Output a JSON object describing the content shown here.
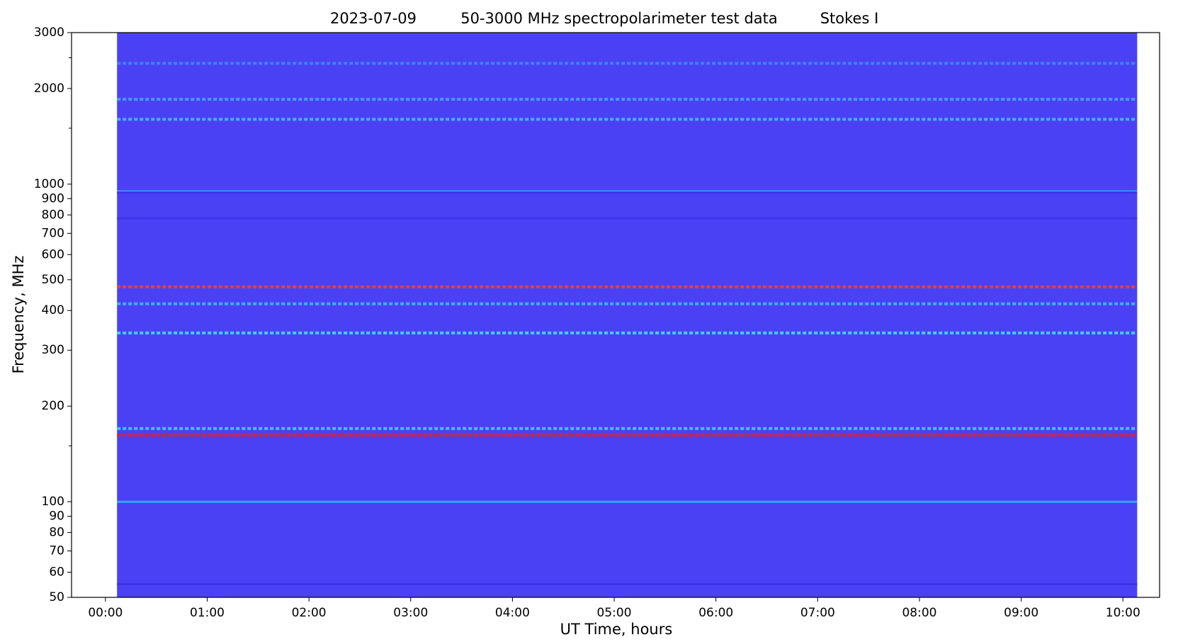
{
  "chart_data": {
    "type": "spectrogram",
    "title": [
      "2023-07-09",
      "50-3000 MHz spectropolarimeter test data",
      "Stokes I"
    ],
    "xlabel": "UT Time, hours",
    "ylabel": "Frequency, MHz",
    "log_y": true,
    "xlim": [
      -0.333,
      10.36
    ],
    "ylim": [
      50,
      3000
    ],
    "x": [
      0.114,
      10.14
    ],
    "background": "#4b41f4",
    "xticks": [
      {
        "value": 0,
        "label": "00:00"
      },
      {
        "value": 1,
        "label": "01:00"
      },
      {
        "value": 2,
        "label": "02:00"
      },
      {
        "value": 3,
        "label": "03:00"
      },
      {
        "value": 4,
        "label": "04:00"
      },
      {
        "value": 5,
        "label": "05:00"
      },
      {
        "value": 6,
        "label": "06:00"
      },
      {
        "value": 7,
        "label": "07:00"
      },
      {
        "value": 8,
        "label": "08:00"
      },
      {
        "value": 9,
        "label": "09:00"
      },
      {
        "value": 10,
        "label": "10:00"
      }
    ],
    "yticks": [
      50,
      60,
      70,
      80,
      90,
      100,
      200,
      300,
      400,
      500,
      600,
      700,
      800,
      900,
      1000,
      2000,
      3000
    ],
    "yminorticks": [
      150,
      1500,
      2500
    ],
    "features": [
      {
        "freq": 162,
        "color": "#ff1a00",
        "dotted": true
      },
      {
        "freq": 170,
        "color": "#30e0ff",
        "dotted": true
      },
      {
        "freq": 475,
        "color": "#ff4020",
        "dotted": true
      },
      {
        "freq": 340,
        "color": "#40e8ff",
        "dotted": true
      },
      {
        "freq": 420,
        "color": "#38c8ff",
        "dotted": true
      },
      {
        "freq": 100,
        "color": "#30b8ff",
        "dotted": false
      },
      {
        "freq": 950,
        "color": "#3aa0ff",
        "dotted": false
      },
      {
        "freq": 1600,
        "color": "#40c8ff",
        "dotted": true
      },
      {
        "freq": 1850,
        "color": "#40b0ff",
        "dotted": true
      },
      {
        "freq": 2400,
        "color": "#3a90ff",
        "dotted": true
      },
      {
        "freq": 55,
        "color": "#3a30e8",
        "dotted": false
      },
      {
        "freq": 780,
        "color": "#3a30e8",
        "dotted": false
      },
      {
        "freq": 940,
        "color": "#3a2ee8",
        "dotted": false
      }
    ]
  }
}
